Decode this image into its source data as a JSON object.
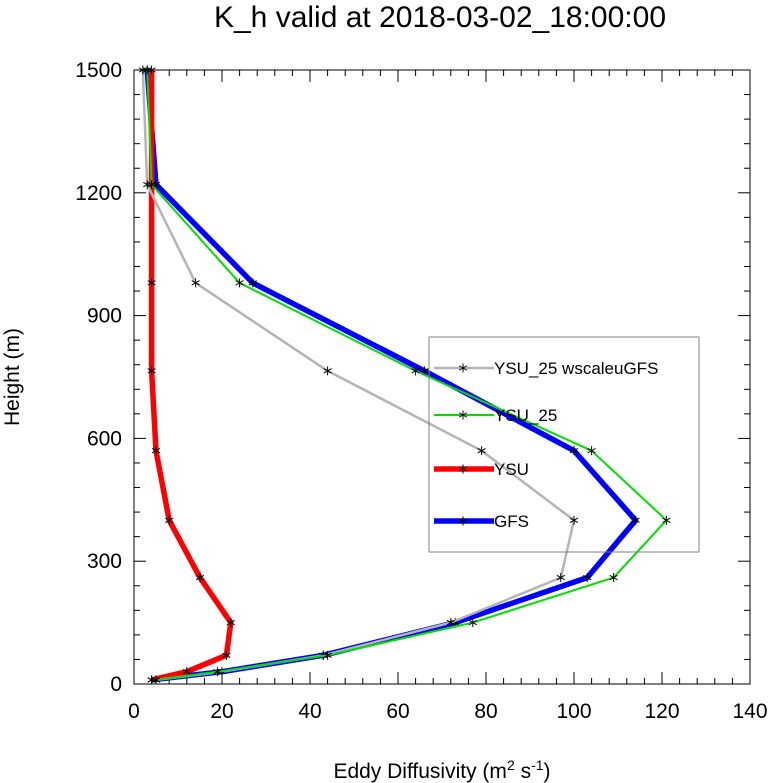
{
  "chart_data": {
    "type": "line",
    "title": "K_h valid at 2018-03-02_18:00:00",
    "xlabel": "Eddy Diffusivity (m² s⁻¹)",
    "ylabel": "Height (m)",
    "xlim": [
      0,
      140
    ],
    "ylim": [
      0,
      1500
    ],
    "xticks": [
      "0",
      "20",
      "40",
      "60",
      "80",
      "100",
      "120",
      "140"
    ],
    "yticks": [
      "0",
      "300",
      "600",
      "900",
      "1200",
      "1500"
    ],
    "grid": false,
    "legend_position": "center-right",
    "series": [
      {
        "name": "YSU_25 wscaleuGFS",
        "color": "#b4b4b4",
        "marker": "asterisk",
        "points": [
          [
            5,
            10
          ],
          [
            20,
            30
          ],
          [
            43,
            70
          ],
          [
            72,
            150
          ],
          [
            97,
            260
          ],
          [
            100,
            400
          ],
          [
            79,
            570
          ],
          [
            44,
            765
          ],
          [
            14,
            980
          ],
          [
            3,
            1220
          ],
          [
            2,
            1500
          ]
        ]
      },
      {
        "name": "YSU_25",
        "color": "#00e000",
        "marker": "asterisk",
        "points": [
          [
            5,
            10
          ],
          [
            19,
            30
          ],
          [
            44,
            70
          ],
          [
            77,
            150
          ],
          [
            109,
            260
          ],
          [
            121,
            400
          ],
          [
            104,
            570
          ],
          [
            64,
            765
          ],
          [
            24,
            980
          ],
          [
            4,
            1220
          ],
          [
            3,
            1500
          ]
        ]
      },
      {
        "name": "YSU",
        "color": "#ff0000",
        "marker": "asterisk",
        "points": [
          [
            4,
            10
          ],
          [
            12,
            30
          ],
          [
            21,
            70
          ],
          [
            22,
            150
          ],
          [
            15,
            260
          ],
          [
            8,
            400
          ],
          [
            5,
            570
          ],
          [
            4,
            765
          ],
          [
            4,
            980
          ],
          [
            4,
            1220
          ],
          [
            4,
            1500
          ]
        ]
      },
      {
        "name": "GFS",
        "color": "#0000ff",
        "marker": "asterisk",
        "points": [
          [
            4,
            10
          ],
          [
            20,
            30
          ],
          [
            43,
            70
          ],
          [
            73,
            150
          ],
          [
            103,
            260
          ],
          [
            114,
            400
          ],
          [
            100,
            570
          ],
          [
            66,
            765
          ],
          [
            27,
            980
          ],
          [
            5,
            1220
          ],
          [
            3,
            1500
          ]
        ]
      }
    ]
  }
}
